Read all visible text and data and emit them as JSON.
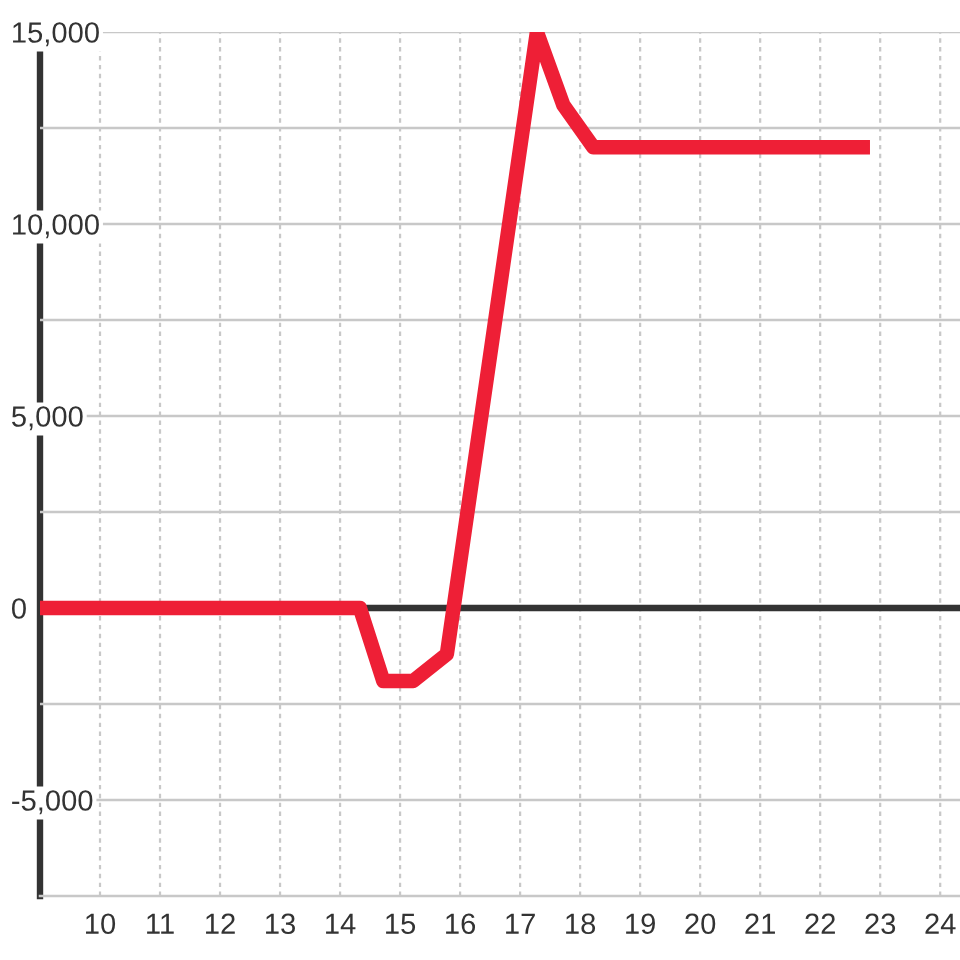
{
  "chart_data": {
    "type": "line",
    "x": [
      9,
      14.33,
      14.72,
      15.22,
      15.78,
      17.28,
      17.72,
      18.22,
      22.83
    ],
    "values": [
      0,
      0,
      -1900,
      -1900,
      -1200,
      15000,
      13100,
      12000,
      12000
    ],
    "color": "#ee1f36",
    "line_style": "solid",
    "xlim": [
      9,
      24.33
    ],
    "xticks": [
      10,
      11,
      12,
      13,
      14,
      15,
      16,
      17,
      18,
      19,
      20,
      21,
      22,
      23,
      24
    ],
    "ylim": [
      -7500,
      15000
    ],
    "yticks": [
      {
        "value": -5000,
        "label": "-5,000"
      },
      {
        "value": -2500,
        "label": null
      },
      0,
      {
        "value": 2500,
        "label": null
      },
      {
        "value": 5000,
        "label": "5,000"
      },
      {
        "value": 7500,
        "label": null
      },
      {
        "value": 10000,
        "label": "10,000"
      },
      {
        "value": 12500,
        "label": null
      },
      {
        "value": 15000,
        "label": "15,000"
      }
    ],
    "grid": true,
    "ref_lines": [
      {
        "axis": "y",
        "value": 0,
        "color": "#333333"
      }
    ]
  }
}
